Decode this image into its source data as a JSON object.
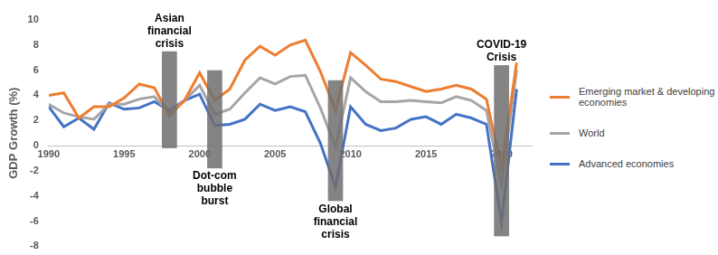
{
  "chart_data": {
    "type": "line",
    "y_label": "GDP Growth (%)",
    "x": [
      1990,
      1991,
      1992,
      1993,
      1994,
      1995,
      1996,
      1997,
      1998,
      1999,
      2000,
      2001,
      2002,
      2003,
      2004,
      2005,
      2006,
      2007,
      2008,
      2009,
      2010,
      2011,
      2012,
      2013,
      2014,
      2015,
      2016,
      2017,
      2018,
      2019,
      2020,
      2021
    ],
    "series": [
      {
        "name": "Emerging market & developing economies",
        "color": "#ED7D31",
        "values": [
          4.0,
          4.2,
          2.2,
          3.1,
          3.1,
          3.8,
          4.9,
          4.6,
          2.4,
          3.6,
          5.8,
          3.6,
          4.5,
          6.8,
          7.9,
          7.2,
          8.0,
          8.4,
          5.9,
          2.8,
          7.4,
          6.4,
          5.3,
          5.1,
          4.7,
          4.3,
          4.5,
          4.8,
          4.5,
          3.7,
          -1.8,
          6.6
        ]
      },
      {
        "name": "World",
        "color": "#A5A5A5",
        "values": [
          3.3,
          2.6,
          2.3,
          2.1,
          3.3,
          3.3,
          3.7,
          3.9,
          2.6,
          3.6,
          4.8,
          2.5,
          2.9,
          4.2,
          5.4,
          4.9,
          5.5,
          5.6,
          3.0,
          -0.1,
          5.4,
          4.3,
          3.5,
          3.5,
          3.6,
          3.5,
          3.4,
          3.9,
          3.6,
          2.8,
          -3.1,
          6.0
        ]
      },
      {
        "name": "Advanced economies",
        "color": "#4472C4",
        "values": [
          3.1,
          1.5,
          2.2,
          1.3,
          3.4,
          2.9,
          3.0,
          3.5,
          2.8,
          3.6,
          4.1,
          1.6,
          1.7,
          2.1,
          3.3,
          2.8,
          3.1,
          2.7,
          0.2,
          -3.3,
          3.1,
          1.7,
          1.2,
          1.4,
          2.1,
          2.3,
          1.7,
          2.5,
          2.2,
          1.7,
          -6.1,
          4.5
        ]
      }
    ],
    "xlim": [
      1990,
      2022
    ],
    "xticks": [
      1990,
      1995,
      2000,
      2005,
      2010,
      2015,
      2020
    ],
    "ylim": [
      -8,
      10
    ],
    "yticks": [
      -8,
      -6,
      -4,
      -2,
      0,
      2,
      4,
      6,
      8,
      10
    ],
    "grid": false,
    "legend": "right",
    "annotations": [
      {
        "label": [
          "Asian",
          "financial",
          "crisis"
        ],
        "x": [
          1997.5,
          1998.5
        ],
        "y": [
          -0.2,
          7.5
        ]
      },
      {
        "label": [
          "Dot-com",
          "bubble",
          "burst"
        ],
        "x": [
          2000.5,
          2001.5
        ],
        "y": [
          -1.8,
          6.0
        ]
      },
      {
        "label": [
          "Global",
          "financial",
          "crisis"
        ],
        "x": [
          2008.5,
          2009.5
        ],
        "y": [
          -4.4,
          5.2
        ]
      },
      {
        "label": [
          "COVID-19",
          "Crisis"
        ],
        "x": [
          2019.5,
          2020.5
        ],
        "y": [
          -7.2,
          6.4
        ]
      }
    ]
  }
}
